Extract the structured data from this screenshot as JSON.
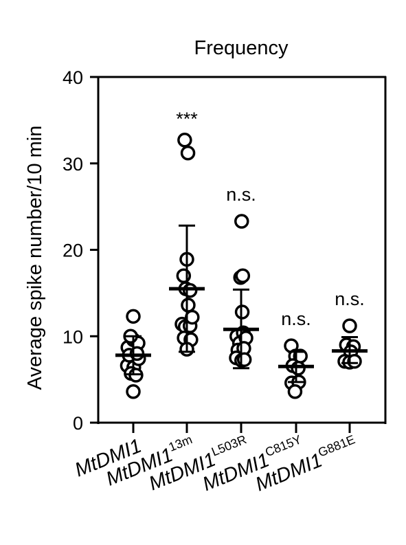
{
  "chart_data": {
    "type": "scatter",
    "title": "Frequency",
    "ylabel": "Average  spike number/10 min",
    "ylim": [
      0,
      40
    ],
    "yticks": [
      0,
      10,
      20,
      30,
      40
    ],
    "groups": [
      {
        "base": "MtDMI1",
        "sup": "",
        "mean": 7.8,
        "sd_low": 5.6,
        "sd_high": 10.0,
        "significance": "",
        "points": [
          {
            "dx": -0.2,
            "y": 8.7
          },
          {
            "dx": 0.0,
            "y": 9.6
          },
          {
            "dx": 0.18,
            "y": 9.2
          },
          {
            "dx": -0.1,
            "y": 10.0
          },
          {
            "dx": 0.0,
            "y": 12.3
          },
          {
            "dx": -0.22,
            "y": 6.6
          },
          {
            "dx": 0.02,
            "y": 6.4
          },
          {
            "dx": 0.2,
            "y": 7.4
          },
          {
            "dx": -0.08,
            "y": 5.7
          },
          {
            "dx": 0.1,
            "y": 5.5
          },
          {
            "dx": 0.0,
            "y": 3.6
          },
          {
            "dx": -0.15,
            "y": 7.8
          },
          {
            "dx": 0.14,
            "y": 8.0
          }
        ]
      },
      {
        "base": "MtDMI1",
        "sup": "13m",
        "mean": 15.5,
        "sd_low": 8.2,
        "sd_high": 22.8,
        "significance": "***",
        "points": [
          {
            "dx": -0.08,
            "y": 32.7
          },
          {
            "dx": 0.04,
            "y": 31.2
          },
          {
            "dx": 0.0,
            "y": 18.9
          },
          {
            "dx": -0.12,
            "y": 17.0
          },
          {
            "dx": -0.04,
            "y": 15.5
          },
          {
            "dx": 0.12,
            "y": 15.3
          },
          {
            "dx": 0.05,
            "y": 13.6
          },
          {
            "dx": -0.18,
            "y": 11.4
          },
          {
            "dx": -0.06,
            "y": 11.1
          },
          {
            "dx": 0.12,
            "y": 11.2
          },
          {
            "dx": 0.2,
            "y": 12.2
          },
          {
            "dx": -0.1,
            "y": 9.8
          },
          {
            "dx": 0.15,
            "y": 9.6
          },
          {
            "dx": 0.0,
            "y": 8.5
          }
        ]
      },
      {
        "base": "MtDMI1",
        "sup": "L503R",
        "mean": 10.8,
        "sd_low": 6.3,
        "sd_high": 15.4,
        "significance": "n.s.",
        "points": [
          {
            "dx": 0.02,
            "y": 23.3
          },
          {
            "dx": -0.02,
            "y": 16.8
          },
          {
            "dx": 0.06,
            "y": 17.0
          },
          {
            "dx": 0.04,
            "y": 12.8
          },
          {
            "dx": -0.16,
            "y": 10.0
          },
          {
            "dx": 0.08,
            "y": 10.4
          },
          {
            "dx": -0.06,
            "y": 9.2
          },
          {
            "dx": 0.18,
            "y": 9.8
          },
          {
            "dx": -0.12,
            "y": 8.4
          },
          {
            "dx": 0.1,
            "y": 8.6
          },
          {
            "dx": -0.18,
            "y": 7.5
          },
          {
            "dx": 0.02,
            "y": 7.2
          },
          {
            "dx": 0.12,
            "y": 7.3
          }
        ]
      },
      {
        "base": "MtDMI1",
        "sup": "C815Y",
        "mean": 6.5,
        "sd_low": 4.7,
        "sd_high": 8.2,
        "significance": "n.s.",
        "points": [
          {
            "dx": -0.18,
            "y": 8.9
          },
          {
            "dx": -0.02,
            "y": 7.7
          },
          {
            "dx": 0.16,
            "y": 7.7
          },
          {
            "dx": -0.12,
            "y": 6.6
          },
          {
            "dx": 0.08,
            "y": 6.3
          },
          {
            "dx": -0.16,
            "y": 4.6
          },
          {
            "dx": 0.1,
            "y": 4.7
          },
          {
            "dx": -0.04,
            "y": 3.6
          }
        ]
      },
      {
        "base": "MtDMI1",
        "sup": "G881E",
        "mean": 8.3,
        "sd_low": 6.9,
        "sd_high": 9.9,
        "significance": "n.s.",
        "points": [
          {
            "dx": 0.0,
            "y": 11.2
          },
          {
            "dx": -0.12,
            "y": 9.0
          },
          {
            "dx": 0.14,
            "y": 8.8
          },
          {
            "dx": 0.04,
            "y": 8.2
          },
          {
            "dx": -0.18,
            "y": 7.1
          },
          {
            "dx": 0.0,
            "y": 7.0
          },
          {
            "dx": 0.18,
            "y": 7.1
          }
        ]
      }
    ]
  }
}
